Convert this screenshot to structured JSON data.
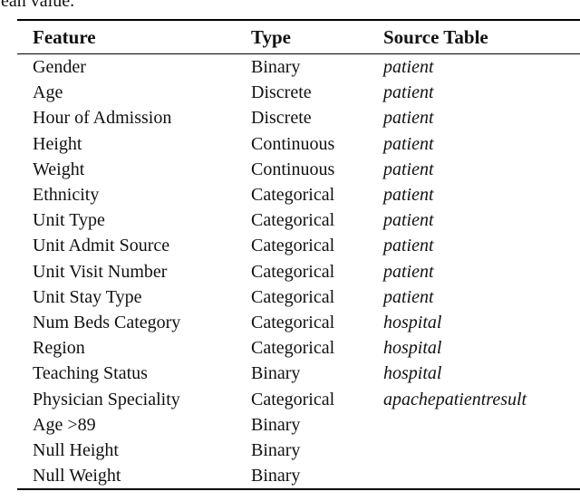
{
  "caption_fragment": "ean value.",
  "colors": {
    "background": "#ffffff",
    "text": "#111111",
    "rule": "#000000"
  },
  "table": {
    "headers": [
      "Feature",
      "Type",
      "Source Table"
    ],
    "rows": [
      {
        "feature": "Gender",
        "type": "Binary",
        "source": "patient"
      },
      {
        "feature": "Age",
        "type": "Discrete",
        "source": "patient"
      },
      {
        "feature": "Hour of Admission",
        "type": "Discrete",
        "source": "patient"
      },
      {
        "feature": "Height",
        "type": "Continuous",
        "source": "patient"
      },
      {
        "feature": "Weight",
        "type": "Continuous",
        "source": "patient"
      },
      {
        "feature": "Ethnicity",
        "type": "Categorical",
        "source": "patient"
      },
      {
        "feature": "Unit Type",
        "type": "Categorical",
        "source": "patient"
      },
      {
        "feature": "Unit Admit Source",
        "type": "Categorical",
        "source": "patient"
      },
      {
        "feature": "Unit Visit Number",
        "type": "Categorical",
        "source": "patient"
      },
      {
        "feature": "Unit Stay Type",
        "type": "Categorical",
        "source": "patient"
      },
      {
        "feature": "Num Beds Category",
        "type": "Categorical",
        "source": "hospital"
      },
      {
        "feature": "Region",
        "type": "Categorical",
        "source": "hospital"
      },
      {
        "feature": "Teaching Status",
        "type": "Binary",
        "source": "hospital"
      },
      {
        "feature": "Physician Speciality",
        "type": "Categorical",
        "source": "apachepatientresult"
      },
      {
        "feature": "Age >89",
        "type": "Binary",
        "source": ""
      },
      {
        "feature": "Null Height",
        "type": "Binary",
        "source": ""
      },
      {
        "feature": "Null Weight",
        "type": "Binary",
        "source": ""
      }
    ]
  }
}
